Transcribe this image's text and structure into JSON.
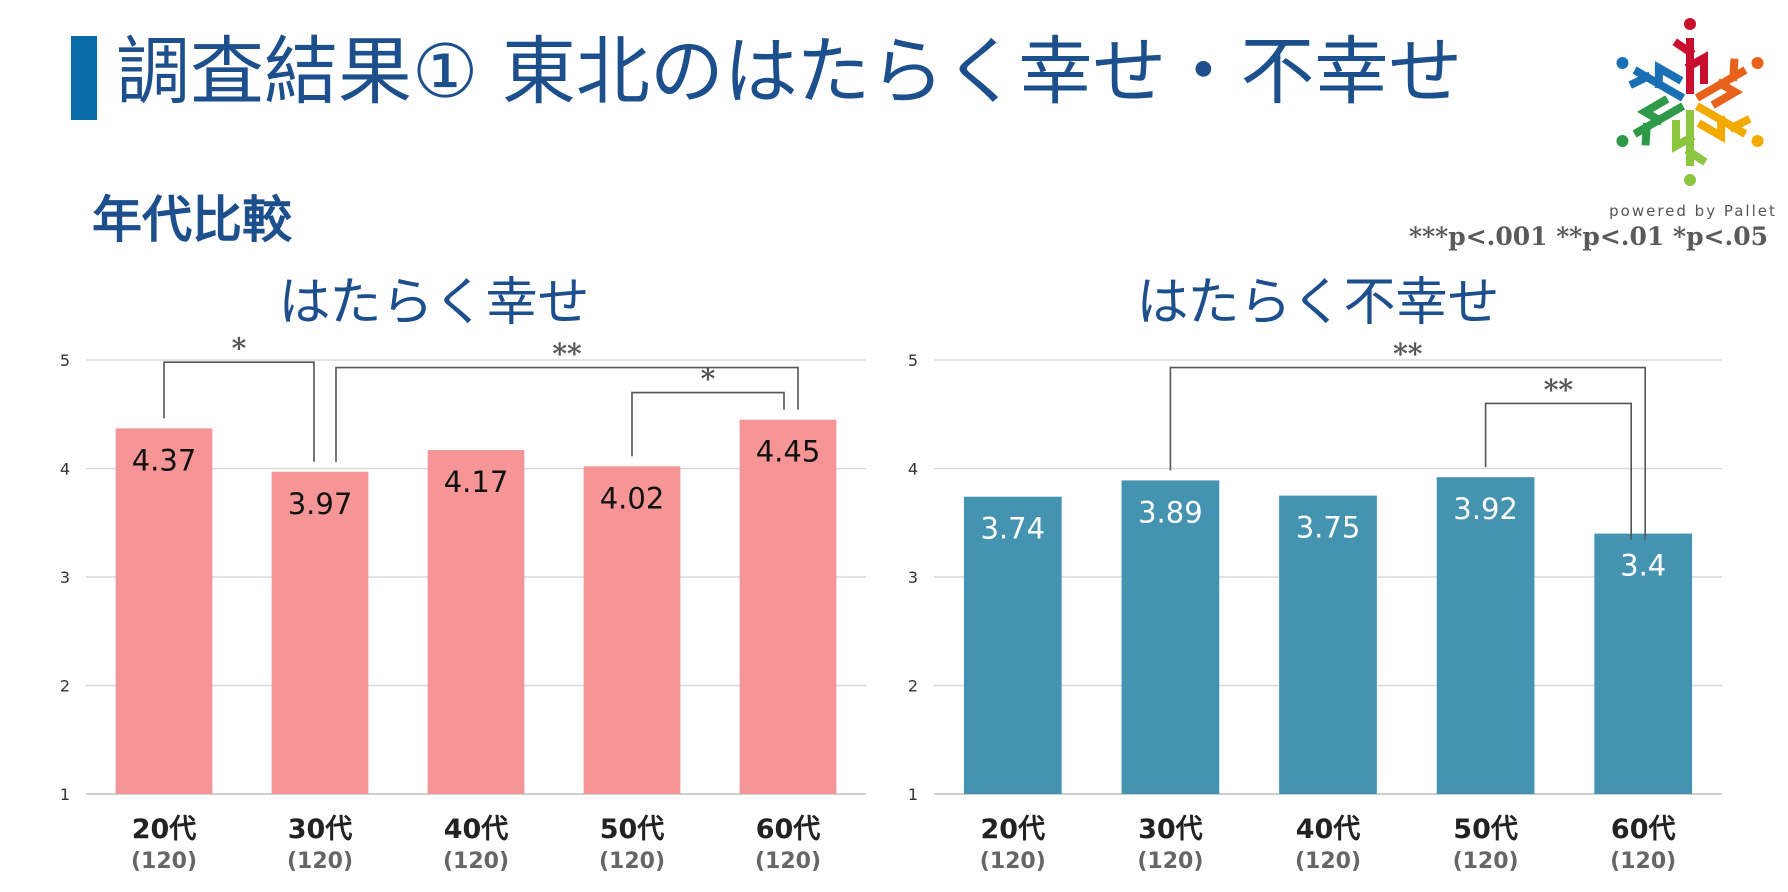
{
  "header": {
    "title": "調査結果① 東北のはたらく幸せ・不幸せ",
    "subtitle": "年代比較",
    "significance_note": "***p<.001 **p<.01 *p<.05"
  },
  "logo": {
    "caption": "powered by Pallet",
    "colors": [
      "#c8102e",
      "#e8611a",
      "#f2a900",
      "#8cc63f",
      "#2e9a48",
      "#1b6fb5"
    ]
  },
  "chart_data": [
    {
      "type": "bar",
      "title": "はたらく幸せ",
      "categories": [
        "20代",
        "30代",
        "40代",
        "50代",
        "60代"
      ],
      "sample_sizes": [
        "(120)",
        "(120)",
        "(120)",
        "(120)",
        "(120)"
      ],
      "values": [
        4.37,
        3.97,
        4.17,
        4.02,
        4.45
      ],
      "value_labels": [
        "4.37",
        "3.97",
        "4.17",
        "4.02",
        "4.45"
      ],
      "ylim": [
        1,
        5
      ],
      "yticks": [
        "1",
        "2",
        "3",
        "4",
        "5"
      ],
      "grid": true,
      "bar_color": "#f59596",
      "label_color": "#111111",
      "significance": [
        {
          "from": 0,
          "to": 1,
          "level": 4.98,
          "label": "*"
        },
        {
          "from": 1,
          "to": 4,
          "level": 4.93,
          "label": "**"
        },
        {
          "from": 3,
          "to": 4,
          "level": 4.7,
          "label": "*"
        }
      ]
    },
    {
      "type": "bar",
      "title": "はたらく不幸せ",
      "categories": [
        "20代",
        "30代",
        "40代",
        "50代",
        "60代"
      ],
      "sample_sizes": [
        "(120)",
        "(120)",
        "(120)",
        "(120)",
        "(120)"
      ],
      "values": [
        3.74,
        3.89,
        3.75,
        3.92,
        3.4
      ],
      "value_labels": [
        "3.74",
        "3.89",
        "3.75",
        "3.92",
        "3.4"
      ],
      "ylim": [
        1,
        5
      ],
      "yticks": [
        "1",
        "2",
        "3",
        "4",
        "5"
      ],
      "grid": true,
      "bar_color": "#4393b1",
      "label_color": "#ffffff",
      "significance": [
        {
          "from": 1,
          "to": 4,
          "level": 4.93,
          "label": "**"
        },
        {
          "from": 3,
          "to": 4,
          "level": 4.6,
          "label": "**"
        }
      ]
    }
  ]
}
